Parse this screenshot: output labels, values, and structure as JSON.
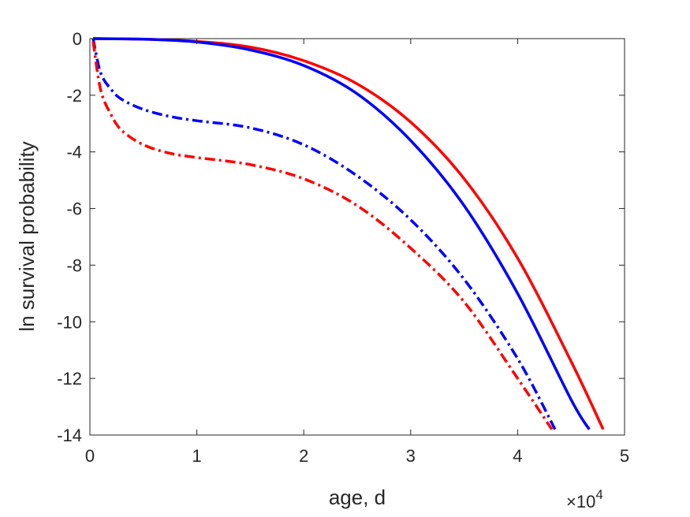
{
  "chart_data": {
    "type": "line",
    "title": "",
    "xlabel": "age, d",
    "ylabel": "ln survival probability",
    "x_multiplier_label": {
      "base": "×10",
      "exponent": "4"
    },
    "xlim": [
      0,
      5
    ],
    "ylim": [
      -14,
      0
    ],
    "x_ticks": [
      "0",
      "1",
      "2",
      "3",
      "4",
      "5"
    ],
    "y_ticks": [
      "0",
      "-2",
      "-4",
      "-6",
      "-8",
      "-10",
      "-12",
      "-14"
    ],
    "grid": false,
    "legend": "none",
    "series": [
      {
        "color": "#ff0000",
        "style": "solid",
        "x": [
          0.03,
          0.5,
          1.0,
          1.5,
          2.0,
          2.5,
          3.0,
          3.5,
          4.0,
          4.5,
          4.8
        ],
        "y": [
          0.0,
          -0.02,
          -0.1,
          -0.3,
          -0.78,
          -1.6,
          -2.95,
          -4.95,
          -7.75,
          -11.4,
          -13.8
        ]
      },
      {
        "color": "#0000ff",
        "style": "solid",
        "x": [
          0.03,
          0.5,
          1.0,
          1.5,
          2.0,
          2.5,
          3.0,
          3.5,
          4.0,
          4.5,
          4.67
        ],
        "y": [
          0.0,
          -0.02,
          -0.12,
          -0.4,
          -0.95,
          -1.95,
          -3.6,
          -5.9,
          -9.0,
          -12.75,
          -13.8
        ]
      },
      {
        "color": "#0000ff",
        "style": "dashdot",
        "x": [
          0.03,
          0.1,
          0.2,
          0.3,
          0.5,
          0.75,
          1.0,
          1.5,
          2.0,
          2.5,
          3.0,
          3.5,
          4.0,
          4.35
        ],
        "y": [
          0.0,
          -1.2,
          -1.8,
          -2.15,
          -2.5,
          -2.75,
          -2.9,
          -3.15,
          -3.75,
          -4.85,
          -6.4,
          -8.5,
          -11.3,
          -13.8
        ]
      },
      {
        "color": "#ff0000",
        "style": "dashdot",
        "x": [
          0.03,
          0.1,
          0.2,
          0.3,
          0.5,
          0.75,
          1.0,
          1.5,
          2.0,
          2.5,
          3.0,
          3.5,
          4.0,
          4.32
        ],
        "y": [
          -0.1,
          -1.8,
          -2.7,
          -3.25,
          -3.75,
          -4.05,
          -4.2,
          -4.45,
          -4.95,
          -5.9,
          -7.4,
          -9.3,
          -12.0,
          -13.8
        ]
      }
    ]
  }
}
